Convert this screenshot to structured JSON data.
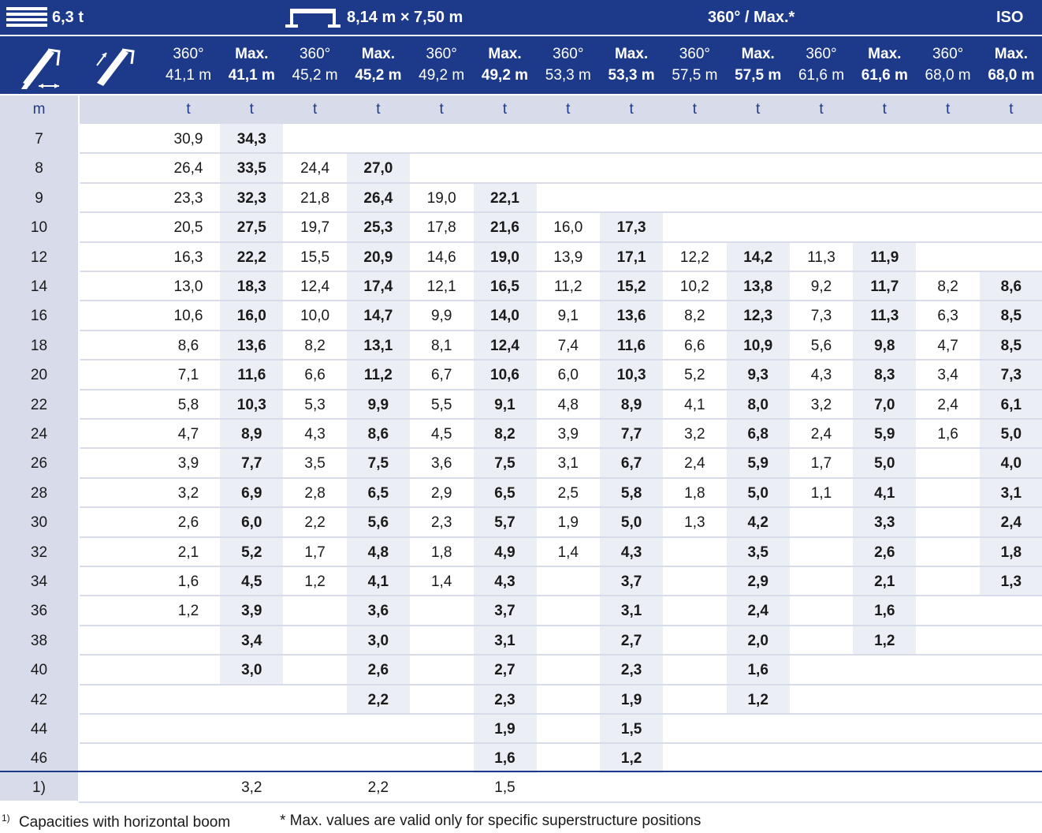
{
  "top": {
    "weight": "6,3 t",
    "outrigger": "8,14 m × 7,50 m",
    "mode": "360° / Max.*",
    "standard": "ISO"
  },
  "icons": [
    "telescopic-boom-icon",
    "luffing-jib-icon"
  ],
  "columns": [
    {
      "mode": "360°",
      "length": "41,1 m"
    },
    {
      "mode": "Max.",
      "length": "41,1 m"
    },
    {
      "mode": "360°",
      "length": "45,2 m"
    },
    {
      "mode": "Max.",
      "length": "45,2 m"
    },
    {
      "mode": "360°",
      "length": "49,2 m"
    },
    {
      "mode": "Max.",
      "length": "49,2 m"
    },
    {
      "mode": "360°",
      "length": "53,3 m"
    },
    {
      "mode": "Max.",
      "length": "53,3 m"
    },
    {
      "mode": "360°",
      "length": "57,5 m"
    },
    {
      "mode": "Max.",
      "length": "57,5 m"
    },
    {
      "mode": "360°",
      "length": "61,6 m"
    },
    {
      "mode": "Max.",
      "length": "61,6 m"
    },
    {
      "mode": "360°",
      "length": "68,0 m"
    },
    {
      "mode": "Max.",
      "length": "68,0 m"
    }
  ],
  "units": {
    "radius": "m",
    "capacity": "t"
  },
  "rows": [
    {
      "r": "7",
      "v": [
        "30,9",
        "34,3",
        "",
        "",
        "",
        "",
        "",
        "",
        "",
        "",
        "",
        "",
        "",
        ""
      ]
    },
    {
      "r": "8",
      "v": [
        "26,4",
        "33,5",
        "24,4",
        "27,0",
        "",
        "",
        "",
        "",
        "",
        "",
        "",
        "",
        "",
        ""
      ]
    },
    {
      "r": "9",
      "v": [
        "23,3",
        "32,3",
        "21,8",
        "26,4",
        "19,0",
        "22,1",
        "",
        "",
        "",
        "",
        "",
        "",
        "",
        ""
      ]
    },
    {
      "r": "10",
      "v": [
        "20,5",
        "27,5",
        "19,7",
        "25,3",
        "17,8",
        "21,6",
        "16,0",
        "17,3",
        "",
        "",
        "",
        "",
        "",
        ""
      ]
    },
    {
      "r": "12",
      "v": [
        "16,3",
        "22,2",
        "15,5",
        "20,9",
        "14,6",
        "19,0",
        "13,9",
        "17,1",
        "12,2",
        "14,2",
        "11,3",
        "11,9",
        "",
        ""
      ]
    },
    {
      "r": "14",
      "v": [
        "13,0",
        "18,3",
        "12,4",
        "17,4",
        "12,1",
        "16,5",
        "11,2",
        "15,2",
        "10,2",
        "13,8",
        "9,2",
        "11,7",
        "8,2",
        "8,6"
      ]
    },
    {
      "r": "16",
      "v": [
        "10,6",
        "16,0",
        "10,0",
        "14,7",
        "9,9",
        "14,0",
        "9,1",
        "13,6",
        "8,2",
        "12,3",
        "7,3",
        "11,3",
        "6,3",
        "8,5"
      ]
    },
    {
      "r": "18",
      "v": [
        "8,6",
        "13,6",
        "8,2",
        "13,1",
        "8,1",
        "12,4",
        "7,4",
        "11,6",
        "6,6",
        "10,9",
        "5,6",
        "9,8",
        "4,7",
        "8,5"
      ]
    },
    {
      "r": "20",
      "v": [
        "7,1",
        "11,6",
        "6,6",
        "11,2",
        "6,7",
        "10,6",
        "6,0",
        "10,3",
        "5,2",
        "9,3",
        "4,3",
        "8,3",
        "3,4",
        "7,3"
      ]
    },
    {
      "r": "22",
      "v": [
        "5,8",
        "10,3",
        "5,3",
        "9,9",
        "5,5",
        "9,1",
        "4,8",
        "8,9",
        "4,1",
        "8,0",
        "3,2",
        "7,0",
        "2,4",
        "6,1"
      ]
    },
    {
      "r": "24",
      "v": [
        "4,7",
        "8,9",
        "4,3",
        "8,6",
        "4,5",
        "8,2",
        "3,9",
        "7,7",
        "3,2",
        "6,8",
        "2,4",
        "5,9",
        "1,6",
        "5,0"
      ]
    },
    {
      "r": "26",
      "v": [
        "3,9",
        "7,7",
        "3,5",
        "7,5",
        "3,6",
        "7,5",
        "3,1",
        "6,7",
        "2,4",
        "5,9",
        "1,7",
        "5,0",
        "",
        "4,0"
      ]
    },
    {
      "r": "28",
      "v": [
        "3,2",
        "6,9",
        "2,8",
        "6,5",
        "2,9",
        "6,5",
        "2,5",
        "5,8",
        "1,8",
        "5,0",
        "1,1",
        "4,1",
        "",
        "3,1"
      ]
    },
    {
      "r": "30",
      "v": [
        "2,6",
        "6,0",
        "2,2",
        "5,6",
        "2,3",
        "5,7",
        "1,9",
        "5,0",
        "1,3",
        "4,2",
        "",
        "3,3",
        "",
        "2,4"
      ]
    },
    {
      "r": "32",
      "v": [
        "2,1",
        "5,2",
        "1,7",
        "4,8",
        "1,8",
        "4,9",
        "1,4",
        "4,3",
        "",
        "3,5",
        "",
        "2,6",
        "",
        "1,8"
      ]
    },
    {
      "r": "34",
      "v": [
        "1,6",
        "4,5",
        "1,2",
        "4,1",
        "1,4",
        "4,3",
        "",
        "3,7",
        "",
        "2,9",
        "",
        "2,1",
        "",
        "1,3"
      ]
    },
    {
      "r": "36",
      "v": [
        "1,2",
        "3,9",
        "",
        "3,6",
        "",
        "3,7",
        "",
        "3,1",
        "",
        "2,4",
        "",
        "1,6",
        "",
        ""
      ]
    },
    {
      "r": "38",
      "v": [
        "",
        "3,4",
        "",
        "3,0",
        "",
        "3,1",
        "",
        "2,7",
        "",
        "2,0",
        "",
        "1,2",
        "",
        ""
      ]
    },
    {
      "r": "40",
      "v": [
        "",
        "3,0",
        "",
        "2,6",
        "",
        "2,7",
        "",
        "2,3",
        "",
        "1,6",
        "",
        "",
        "",
        ""
      ]
    },
    {
      "r": "42",
      "v": [
        "",
        "",
        "",
        "2,2",
        "",
        "2,3",
        "",
        "1,9",
        "",
        "1,2",
        "",
        "",
        "",
        ""
      ]
    },
    {
      "r": "44",
      "v": [
        "",
        "",
        "",
        "",
        "",
        "1,9",
        "",
        "1,5",
        "",
        "",
        "",
        "",
        "",
        ""
      ]
    },
    {
      "r": "46",
      "v": [
        "",
        "",
        "",
        "",
        "",
        "1,6",
        "",
        "1,2",
        "",
        "",
        "",
        "",
        "",
        ""
      ]
    }
  ],
  "footnote_row": {
    "label": "1)",
    "v": [
      "",
      "3,2",
      "",
      "2,2",
      "",
      "1,5",
      "",
      "",
      "",
      "",
      "",
      "",
      "",
      ""
    ]
  },
  "footnotes": {
    "marker": "1)",
    "note1": "Capacities with horizontal boom",
    "note2": "* Max. values are valid only for specific superstructure positions"
  },
  "colors": {
    "header": "#1d3a8a",
    "band": "#d8dcea",
    "shade": "#eceef5"
  }
}
